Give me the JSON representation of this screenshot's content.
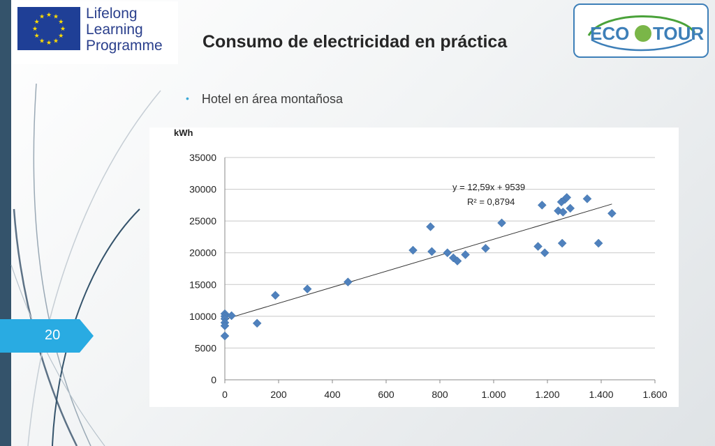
{
  "header": {
    "title": "Consumo de electricidad en práctica",
    "lllp_lines": [
      "Lifelong",
      "Learning",
      "Programme"
    ],
    "ecotour_text": "ECOTOUR"
  },
  "slide": {
    "bullet": "Hotel en área montañosa",
    "page_number": "20"
  },
  "colors": {
    "left_bar": "#34536b",
    "accent_tab": "#29abe2",
    "marker": "#4f81bd",
    "eu_blue": "#1f3f96",
    "eu_star": "#ffdd00"
  },
  "chart_data": {
    "type": "scatter",
    "ylabel": "kWh",
    "xlabel": "",
    "xlim": [
      0,
      1600
    ],
    "ylim": [
      0,
      35000
    ],
    "xticks": [
      0,
      200,
      400,
      600,
      800,
      1000,
      1200,
      1400,
      1600
    ],
    "xtick_labels": [
      "0",
      "200",
      "400",
      "600",
      "800",
      "1.000",
      "1.200",
      "1.400",
      "1.600"
    ],
    "yticks": [
      0,
      5000,
      10000,
      15000,
      20000,
      25000,
      30000,
      35000
    ],
    "ytick_labels": [
      "0",
      "5000",
      "10000",
      "15000",
      "20000",
      "25000",
      "30000",
      "35000"
    ],
    "grid": "horizontal",
    "trendline": {
      "slope": 12.59,
      "intercept": 9539,
      "x_range": [
        0,
        1440
      ]
    },
    "equation": "y = 12,59x + 9539",
    "r_squared": "R² = 0,8794",
    "points": [
      [
        0,
        10400
      ],
      [
        0,
        10000
      ],
      [
        0,
        9600
      ],
      [
        0,
        9000
      ],
      [
        0,
        8500
      ],
      [
        0,
        6900
      ],
      [
        25,
        10100
      ],
      [
        120,
        8900
      ],
      [
        188,
        13300
      ],
      [
        307,
        14300
      ],
      [
        458,
        15400
      ],
      [
        700,
        20400
      ],
      [
        765,
        24100
      ],
      [
        770,
        20200
      ],
      [
        828,
        20000
      ],
      [
        850,
        19200
      ],
      [
        865,
        18700
      ],
      [
        895,
        19700
      ],
      [
        970,
        20700
      ],
      [
        1030,
        24700
      ],
      [
        1165,
        21000
      ],
      [
        1180,
        27500
      ],
      [
        1190,
        20000
      ],
      [
        1240,
        26600
      ],
      [
        1252,
        28000
      ],
      [
        1255,
        21500
      ],
      [
        1258,
        26400
      ],
      [
        1265,
        28400
      ],
      [
        1272,
        28700
      ],
      [
        1285,
        27000
      ],
      [
        1348,
        28500
      ],
      [
        1390,
        21500
      ],
      [
        1440,
        26200
      ]
    ]
  }
}
